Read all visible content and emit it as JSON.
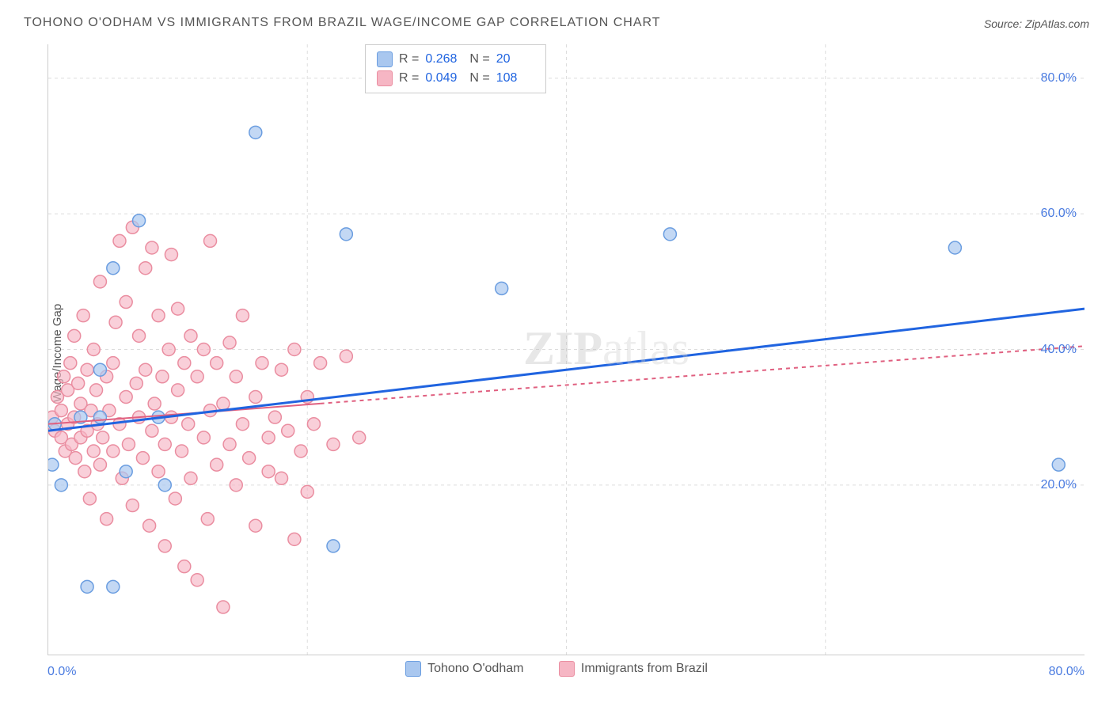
{
  "title": "TOHONO O'ODHAM VS IMMIGRANTS FROM BRAZIL WAGE/INCOME GAP CORRELATION CHART",
  "source": "Source: ZipAtlas.com",
  "ylabel": "Wage/Income Gap",
  "watermark": {
    "zip": "ZIP",
    "atlas": "atlas"
  },
  "chart": {
    "type": "scatter",
    "xlim": [
      0,
      80
    ],
    "ylim": [
      -5,
      85
    ],
    "x_ticks": [
      "0.0%",
      "80.0%"
    ],
    "y_ticks": [
      {
        "v": 20,
        "label": "20.0%"
      },
      {
        "v": 40,
        "label": "40.0%"
      },
      {
        "v": 60,
        "label": "60.0%"
      },
      {
        "v": 80,
        "label": "80.0%"
      }
    ],
    "x_grid": [
      20,
      40,
      60
    ],
    "y_grid": [
      20,
      40,
      60,
      80
    ],
    "grid_color": "#dddddd",
    "background_color": "#ffffff",
    "series": [
      {
        "name": "Tohono O'odham",
        "color_fill": "#a9c7ef",
        "color_stroke": "#6a9de0",
        "marker_radius": 8,
        "marker_opacity": 0.7,
        "R": "0.268",
        "N": "20",
        "trend": {
          "x1": 0,
          "y1": 28,
          "x2": 80,
          "y2": 46,
          "color": "#2064e0",
          "width": 3,
          "dash": "none",
          "solid_until_x": 80
        },
        "points": [
          [
            0.3,
            23
          ],
          [
            0.5,
            29
          ],
          [
            1.0,
            20
          ],
          [
            2.5,
            30
          ],
          [
            4.0,
            30
          ],
          [
            4.0,
            37
          ],
          [
            5.0,
            52
          ],
          [
            6.0,
            22
          ],
          [
            7.0,
            59
          ],
          [
            8.5,
            30
          ],
          [
            9.0,
            20
          ],
          [
            3.0,
            5
          ],
          [
            5.0,
            5
          ],
          [
            16.0,
            72
          ],
          [
            23.0,
            57
          ],
          [
            22.0,
            11
          ],
          [
            35.0,
            49
          ],
          [
            48.0,
            57
          ],
          [
            70.0,
            55
          ],
          [
            78.0,
            23
          ]
        ]
      },
      {
        "name": "Immigrants from Brazil",
        "color_fill": "#f6b6c4",
        "color_stroke": "#ea8da0",
        "marker_radius": 8,
        "marker_opacity": 0.65,
        "R": "0.049",
        "N": "108",
        "trend": {
          "x1": 0,
          "y1": 29,
          "x2": 80,
          "y2": 40.5,
          "color": "#e06080",
          "width": 2,
          "dash": "5,5",
          "solid_until_x": 21
        },
        "points": [
          [
            0.3,
            30
          ],
          [
            0.5,
            28
          ],
          [
            0.7,
            33
          ],
          [
            1.0,
            27
          ],
          [
            1.0,
            31
          ],
          [
            1.2,
            36
          ],
          [
            1.3,
            25
          ],
          [
            1.5,
            29
          ],
          [
            1.5,
            34
          ],
          [
            1.7,
            38
          ],
          [
            1.8,
            26
          ],
          [
            2.0,
            30
          ],
          [
            2.0,
            42
          ],
          [
            2.1,
            24
          ],
          [
            2.3,
            35
          ],
          [
            2.5,
            27
          ],
          [
            2.5,
            32
          ],
          [
            2.7,
            45
          ],
          [
            2.8,
            22
          ],
          [
            3.0,
            28
          ],
          [
            3.0,
            37
          ],
          [
            3.2,
            18
          ],
          [
            3.3,
            31
          ],
          [
            3.5,
            25
          ],
          [
            3.5,
            40
          ],
          [
            3.7,
            34
          ],
          [
            3.8,
            29
          ],
          [
            4.0,
            23
          ],
          [
            4.0,
            50
          ],
          [
            4.2,
            27
          ],
          [
            4.5,
            36
          ],
          [
            4.5,
            15
          ],
          [
            4.7,
            31
          ],
          [
            5.0,
            38
          ],
          [
            5.0,
            25
          ],
          [
            5.2,
            44
          ],
          [
            5.5,
            29
          ],
          [
            5.5,
            56
          ],
          [
            5.7,
            21
          ],
          [
            6.0,
            33
          ],
          [
            6.0,
            47
          ],
          [
            6.2,
            26
          ],
          [
            6.5,
            58
          ],
          [
            6.5,
            17
          ],
          [
            6.8,
            35
          ],
          [
            7.0,
            30
          ],
          [
            7.0,
            42
          ],
          [
            7.3,
            24
          ],
          [
            7.5,
            52
          ],
          [
            7.5,
            37
          ],
          [
            7.8,
            14
          ],
          [
            8.0,
            28
          ],
          [
            8.0,
            55
          ],
          [
            8.2,
            32
          ],
          [
            8.5,
            22
          ],
          [
            8.5,
            45
          ],
          [
            8.8,
            36
          ],
          [
            9.0,
            26
          ],
          [
            9.0,
            11
          ],
          [
            9.3,
            40
          ],
          [
            9.5,
            30
          ],
          [
            9.5,
            54
          ],
          [
            9.8,
            18
          ],
          [
            10.0,
            34
          ],
          [
            10.0,
            46
          ],
          [
            10.3,
            25
          ],
          [
            10.5,
            38
          ],
          [
            10.5,
            8
          ],
          [
            10.8,
            29
          ],
          [
            11.0,
            42
          ],
          [
            11.0,
            21
          ],
          [
            11.5,
            36
          ],
          [
            11.5,
            6
          ],
          [
            12.0,
            27
          ],
          [
            12.0,
            40
          ],
          [
            12.3,
            15
          ],
          [
            12.5,
            31
          ],
          [
            12.5,
            56
          ],
          [
            13.0,
            23
          ],
          [
            13.0,
            38
          ],
          [
            13.5,
            2
          ],
          [
            13.5,
            32
          ],
          [
            14.0,
            26
          ],
          [
            14.0,
            41
          ],
          [
            14.5,
            20
          ],
          [
            14.5,
            36
          ],
          [
            15.0,
            29
          ],
          [
            15.0,
            45
          ],
          [
            15.5,
            24
          ],
          [
            16.0,
            33
          ],
          [
            16.0,
            14
          ],
          [
            16.5,
            38
          ],
          [
            17.0,
            27
          ],
          [
            17.0,
            22
          ],
          [
            17.5,
            30
          ],
          [
            18.0,
            37
          ],
          [
            18.0,
            21
          ],
          [
            18.5,
            28
          ],
          [
            19.0,
            40
          ],
          [
            19.0,
            12
          ],
          [
            19.5,
            25
          ],
          [
            20.0,
            33
          ],
          [
            20.0,
            19
          ],
          [
            20.5,
            29
          ],
          [
            21.0,
            38
          ],
          [
            22.0,
            26
          ],
          [
            23.0,
            39
          ],
          [
            24.0,
            27
          ]
        ]
      }
    ]
  },
  "legend": {
    "series1": "Tohono O'odham",
    "series2": "Immigrants from Brazil"
  }
}
